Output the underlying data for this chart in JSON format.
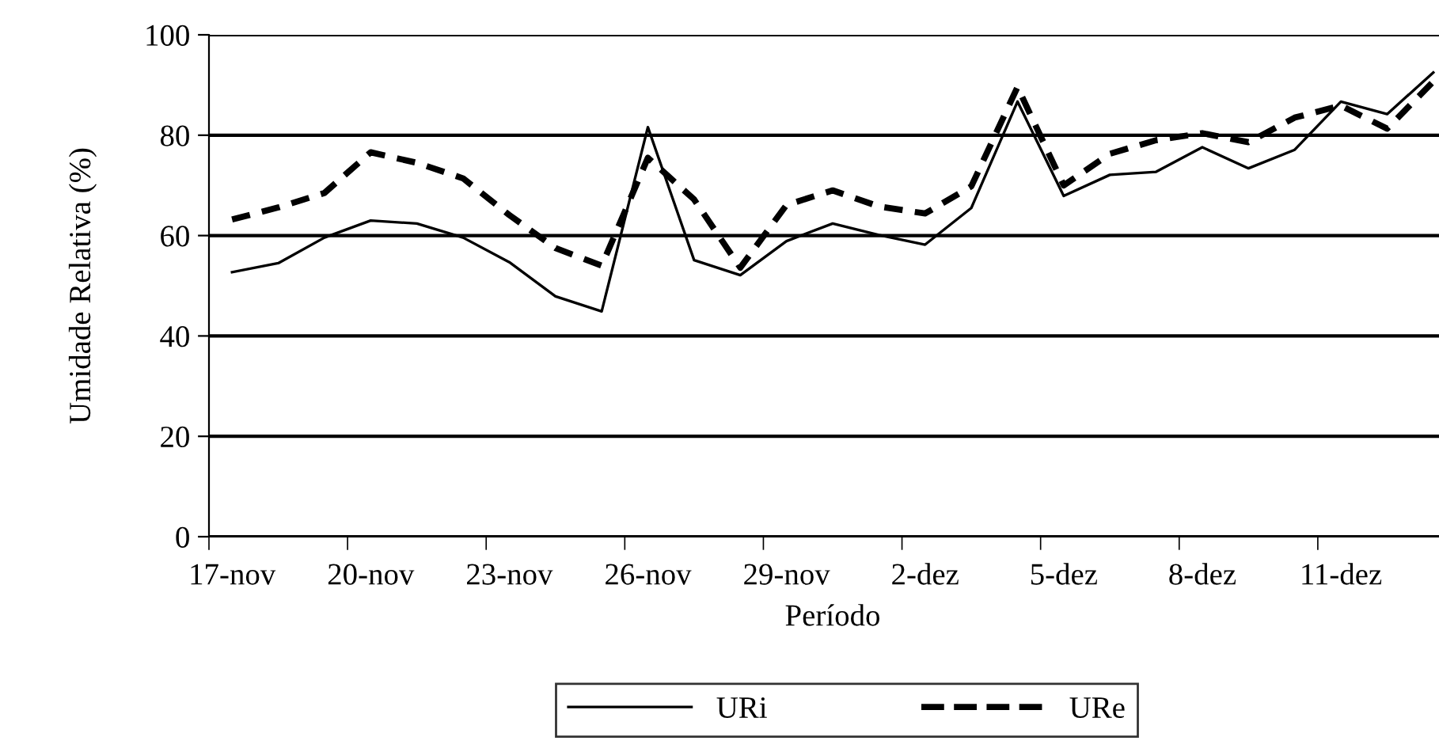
{
  "chart_data": {
    "type": "line",
    "xlabel": "Período",
    "ylabel": "Umidade Relativa (%)",
    "categories": [
      "17-nov",
      null,
      null,
      "20-nov",
      null,
      null,
      "23-nov",
      null,
      null,
      "26-nov",
      null,
      null,
      "29-nov",
      null,
      null,
      "2-dez",
      null,
      null,
      "5-dez",
      null,
      null,
      "8-dez",
      null,
      null,
      "11-dez",
      null,
      null
    ],
    "series": [
      {
        "name": "URi",
        "color": "#000000",
        "line_style": "solid",
        "values": [
          52.7,
          54.5,
          59.6,
          63.0,
          62.4,
          59.6,
          54.7,
          47.9,
          44.9,
          81.6,
          55.1,
          52.1,
          58.9,
          62.4,
          60.1,
          58.2,
          65.5,
          86.7,
          67.9,
          72.1,
          72.7,
          77.6,
          73.4,
          77.1,
          86.7,
          84.2,
          92.5
        ]
      },
      {
        "name": "URe",
        "color": "#000000",
        "line_style": "dashed",
        "values": [
          63.2,
          65.6,
          68.5,
          76.6,
          74.5,
          71.4,
          64.1,
          57.5,
          54.0,
          75.5,
          67.2,
          53.6,
          66.1,
          69.0,
          65.8,
          64.4,
          69.8,
          89.6,
          70.0,
          76.3,
          79.0,
          80.4,
          78.6,
          83.5,
          85.9,
          81.3,
          90.7
        ]
      }
    ],
    "ylim": [
      0,
      100
    ],
    "yticks": [
      0,
      20,
      40,
      60,
      80,
      100
    ],
    "grid": "y",
    "legend": "bottom",
    "marker": "none"
  }
}
